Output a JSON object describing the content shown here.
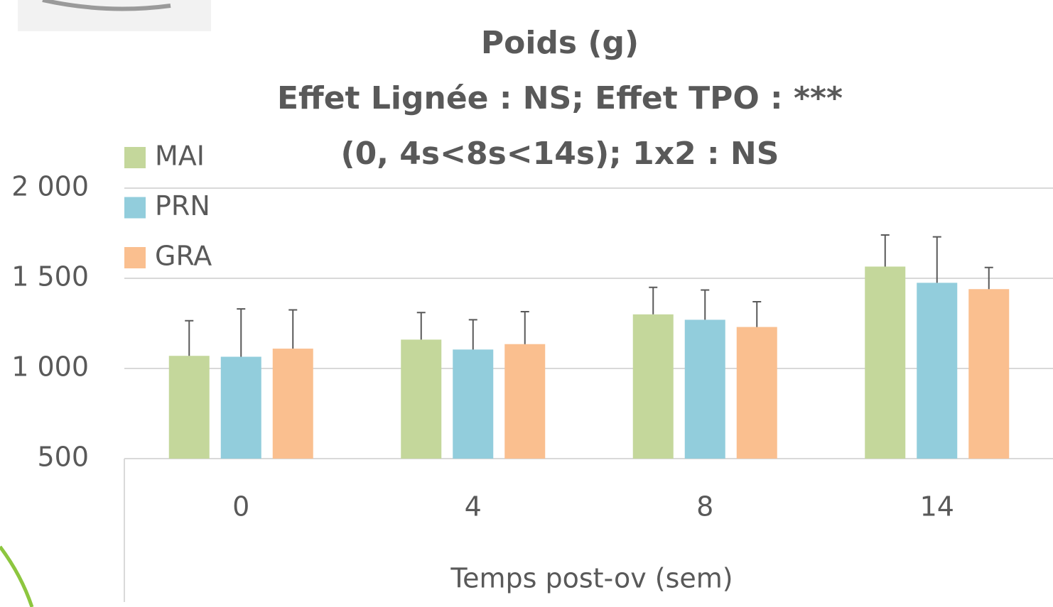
{
  "chart_data": {
    "type": "bar",
    "title": [
      "Poids (g)",
      "Effet Lignée : NS; Effet TPO : ***",
      "(0, 4s<8s<14s); 1x2 : NS"
    ],
    "x_label": "Temps post-ov (sem)",
    "categories": [
      "0",
      "4",
      "8",
      "14"
    ],
    "series": [
      {
        "name": "MAI",
        "color": "#c4d79b",
        "values": [
          1070,
          1160,
          1300,
          1565
        ],
        "errors": [
          195,
          150,
          150,
          175
        ]
      },
      {
        "name": "PRN",
        "color": "#92cddc",
        "values": [
          1065,
          1105,
          1270,
          1475
        ],
        "errors": [
          265,
          165,
          165,
          255
        ]
      },
      {
        "name": "GRA",
        "color": "#fabf8f",
        "values": [
          1110,
          1135,
          1230,
          1440
        ],
        "errors": [
          215,
          180,
          140,
          120
        ]
      }
    ],
    "ylim": [
      500,
      2000
    ],
    "yticks": [
      {
        "value": 500,
        "label": "500"
      },
      {
        "value": 1000,
        "label": "1 000"
      },
      {
        "value": 1500,
        "label": "1 500"
      },
      {
        "value": 2000,
        "label": "2 000"
      }
    ],
    "grid": true
  }
}
